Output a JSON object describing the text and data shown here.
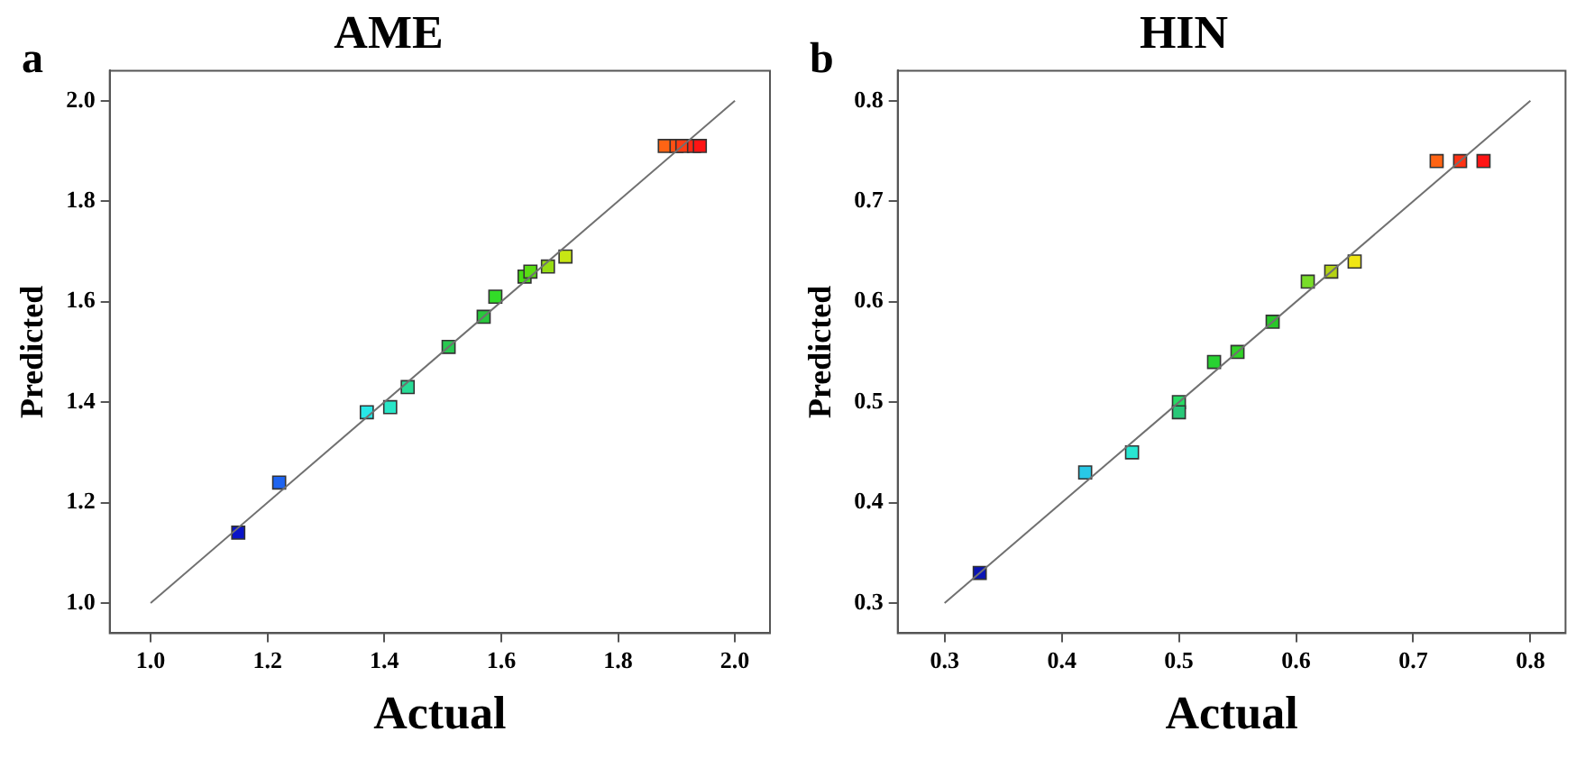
{
  "chart_data": [
    {
      "type": "scatter",
      "title": "AME",
      "xlabel": "Actual",
      "ylabel": "Predicted",
      "annotations": [
        "a"
      ],
      "marker": "square",
      "xlim": [
        0.93,
        2.06
      ],
      "ylim": [
        0.94,
        2.06
      ],
      "xticks": [
        {
          "value": 1.0,
          "label": "1.0"
        },
        {
          "value": 1.2,
          "label": "1.2"
        },
        {
          "value": 1.4,
          "label": "1.4"
        },
        {
          "value": 1.6,
          "label": "1.6"
        },
        {
          "value": 1.8,
          "label": "1.8"
        },
        {
          "value": 2.0,
          "label": "2.0"
        }
      ],
      "yticks": [
        {
          "value": 1.0,
          "label": "1.0"
        },
        {
          "value": 1.2,
          "label": "1.2"
        },
        {
          "value": 1.4,
          "label": "1.4"
        },
        {
          "value": 1.6,
          "label": "1.6"
        },
        {
          "value": 1.8,
          "label": "1.8"
        },
        {
          "value": 2.0,
          "label": "2.0"
        }
      ],
      "series": [
        {
          "type": "line",
          "x": [
            1.0,
            2.0
          ],
          "values": [
            1.0,
            2.0
          ],
          "color": "#707070",
          "marker": "none"
        },
        {
          "x": [
            1.15,
            1.22,
            1.37,
            1.41,
            1.44,
            1.51,
            1.57,
            1.59,
            1.64,
            1.65,
            1.68,
            1.71,
            1.88,
            1.9,
            1.91,
            1.93,
            1.94
          ],
          "values": [
            1.14,
            1.24,
            1.38,
            1.39,
            1.43,
            1.51,
            1.57,
            1.61,
            1.65,
            1.66,
            1.67,
            1.69,
            1.91,
            1.91,
            1.91,
            1.91,
            1.91
          ],
          "colors": [
            "#0a14c8",
            "#1e64f0",
            "#28e6e6",
            "#28e6c8",
            "#28dc96",
            "#28c850",
            "#28c83c",
            "#32dc28",
            "#46dc14",
            "#5adc14",
            "#96dc14",
            "#c8e614",
            "#ff6414",
            "#ff5014",
            "#ff3c14",
            "#ff2814",
            "#ff1414"
          ]
        }
      ]
    },
    {
      "type": "scatter",
      "title": "HIN",
      "xlabel": "Actual",
      "ylabel": "Predicted",
      "annotations": [
        "b"
      ],
      "marker": "square",
      "xlim": [
        0.26,
        0.83
      ],
      "ylim": [
        0.27,
        0.83
      ],
      "xticks": [
        0.3,
        0.4,
        0.5,
        0.6,
        0.7,
        0.8
      ],
      "yticks": [
        0.3,
        0.4,
        0.5,
        0.6,
        0.7,
        0.8
      ],
      "series": [
        {
          "type": "line",
          "x": [
            0.3,
            0.8
          ],
          "values": [
            0.3,
            0.8
          ],
          "color": "#707070",
          "marker": "none"
        },
        {
          "x": [
            0.33,
            0.42,
            0.46,
            0.5,
            0.5,
            0.53,
            0.55,
            0.58,
            0.61,
            0.63,
            0.65,
            0.72,
            0.74,
            0.76
          ],
          "values": [
            0.33,
            0.43,
            0.45,
            0.5,
            0.49,
            0.54,
            0.55,
            0.58,
            0.62,
            0.63,
            0.64,
            0.74,
            0.74,
            0.74
          ],
          "colors": [
            "#0a14b4",
            "#28c8e6",
            "#28e6d2",
            "#28dc64",
            "#28c878",
            "#28d232",
            "#32d228",
            "#28c828",
            "#78dc28",
            "#b4d214",
            "#f0e614",
            "#ff6414",
            "#ff3214",
            "#ff1414"
          ]
        }
      ]
    }
  ]
}
